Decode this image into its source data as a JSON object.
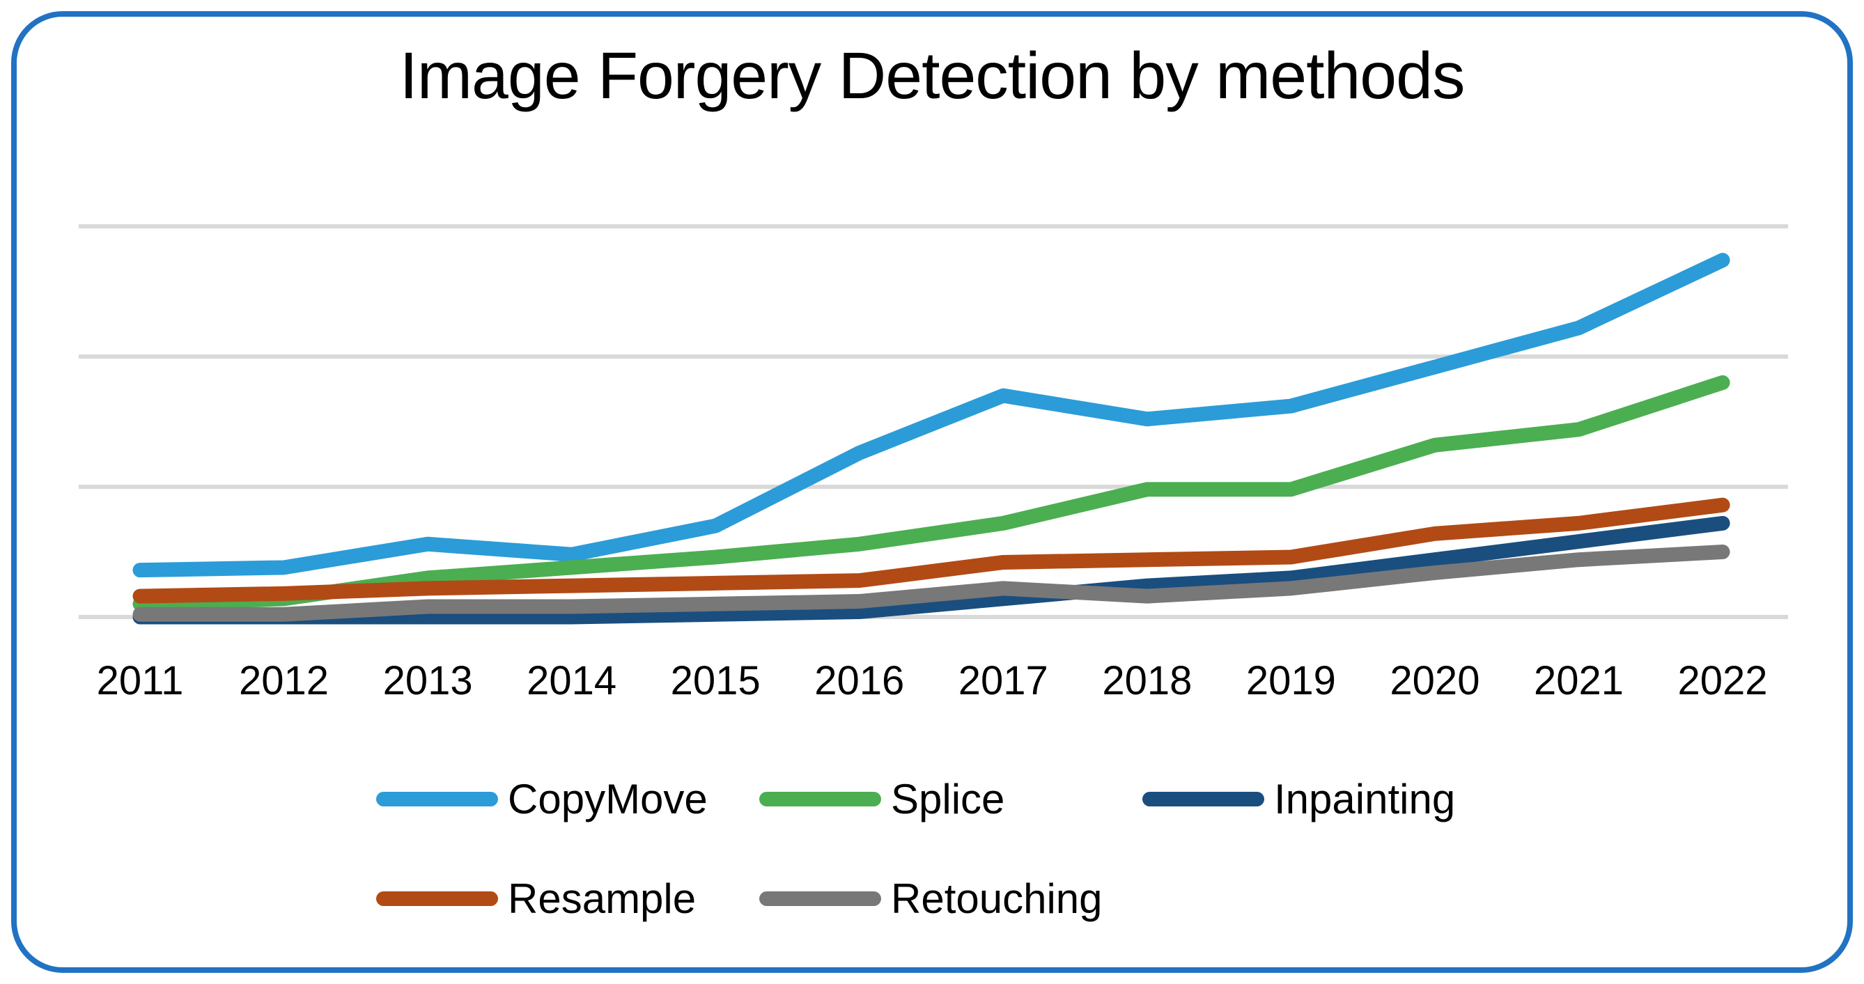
{
  "card": {
    "border_color": "#2272C3",
    "background": "#FFFFFF"
  },
  "colors": {
    "gridline": "#D9D9D9",
    "text": "#000000",
    "background": "#FFFFFF"
  },
  "chart_data": {
    "type": "line",
    "title": "Image Forgery Detection by methods",
    "xlabel": "",
    "ylabel": "",
    "grid": true,
    "legend_position": "bottom",
    "y_axis_labels_visible": false,
    "gridline_values": [
      0,
      50,
      100,
      150
    ],
    "ylim": [
      0,
      160
    ],
    "categories": [
      "2011",
      "2012",
      "2013",
      "2014",
      "2015",
      "2016",
      "2017",
      "2018",
      "2019",
      "2020",
      "2021",
      "2022"
    ],
    "series": [
      {
        "name": "CopyMove",
        "color": "#2B9CD8",
        "values": [
          18,
          19,
          28,
          24,
          35,
          63,
          85,
          76,
          81,
          96,
          111,
          137
        ]
      },
      {
        "name": "Splice",
        "color": "#4BAE50",
        "values": [
          5,
          7,
          15,
          19,
          23,
          28,
          36,
          49,
          49,
          66,
          72,
          90
        ]
      },
      {
        "name": "Inpainting",
        "color": "#1A4E7E",
        "values": [
          0,
          0,
          0,
          0,
          1,
          2,
          7,
          12,
          15,
          22,
          29,
          36
        ]
      },
      {
        "name": "Resample",
        "color": "#B24A16",
        "values": [
          8,
          9,
          11,
          12,
          13,
          14,
          21,
          22,
          23,
          32,
          36,
          43
        ]
      },
      {
        "name": "Retouching",
        "color": "#787878",
        "values": [
          1,
          1,
          4,
          4,
          5,
          6,
          11,
          8,
          11,
          17,
          22,
          25
        ]
      }
    ],
    "legend_order": [
      "CopyMove",
      "Splice",
      "Inpainting",
      "Resample",
      "Retouching"
    ]
  }
}
